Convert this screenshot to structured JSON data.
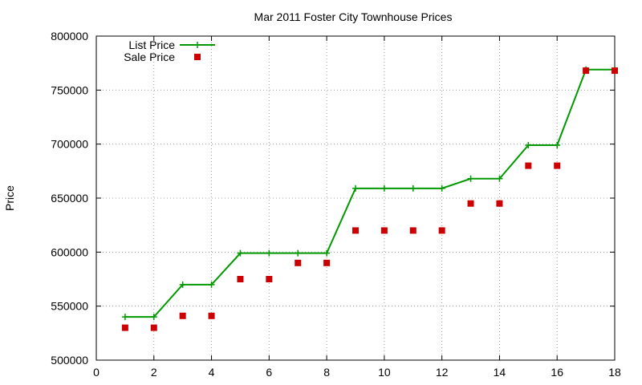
{
  "chart_data": {
    "type": "line",
    "title": "Mar 2011 Foster City Townhouse Prices",
    "xlabel": "",
    "ylabel": "Price",
    "xlim": [
      0,
      18
    ],
    "ylim": [
      500000,
      800000
    ],
    "x_ticks": [
      "0",
      "2",
      "4",
      "6",
      "8",
      "10",
      "12",
      "14",
      "16",
      "18"
    ],
    "y_ticks": [
      "500000",
      "550000",
      "600000",
      "650000",
      "700000",
      "750000",
      "800000"
    ],
    "grid": true,
    "legend_position": "top-left",
    "series": [
      {
        "name": "List Price",
        "style": "line+cross",
        "color": "#009900",
        "x": [
          1,
          2,
          3,
          4,
          5,
          6,
          7,
          8,
          9,
          10,
          11,
          12,
          13,
          14,
          15,
          16,
          17,
          18
        ],
        "y": [
          540000,
          540000,
          569900,
          569900,
          599000,
          599000,
          599000,
          599000,
          659000,
          659000,
          659000,
          659000,
          668000,
          668000,
          699000,
          699000,
          769000,
          769000
        ]
      },
      {
        "name": "Sale Price",
        "style": "square",
        "color": "#cc0000",
        "x": [
          1,
          2,
          3,
          4,
          5,
          6,
          7,
          8,
          9,
          10,
          11,
          12,
          13,
          14,
          15,
          16,
          17,
          18
        ],
        "y": [
          530000,
          530000,
          541000,
          541000,
          575000,
          575000,
          590000,
          590000,
          620000,
          620000,
          620000,
          620000,
          645000,
          645000,
          680000,
          680000,
          768000,
          768000
        ]
      }
    ]
  }
}
